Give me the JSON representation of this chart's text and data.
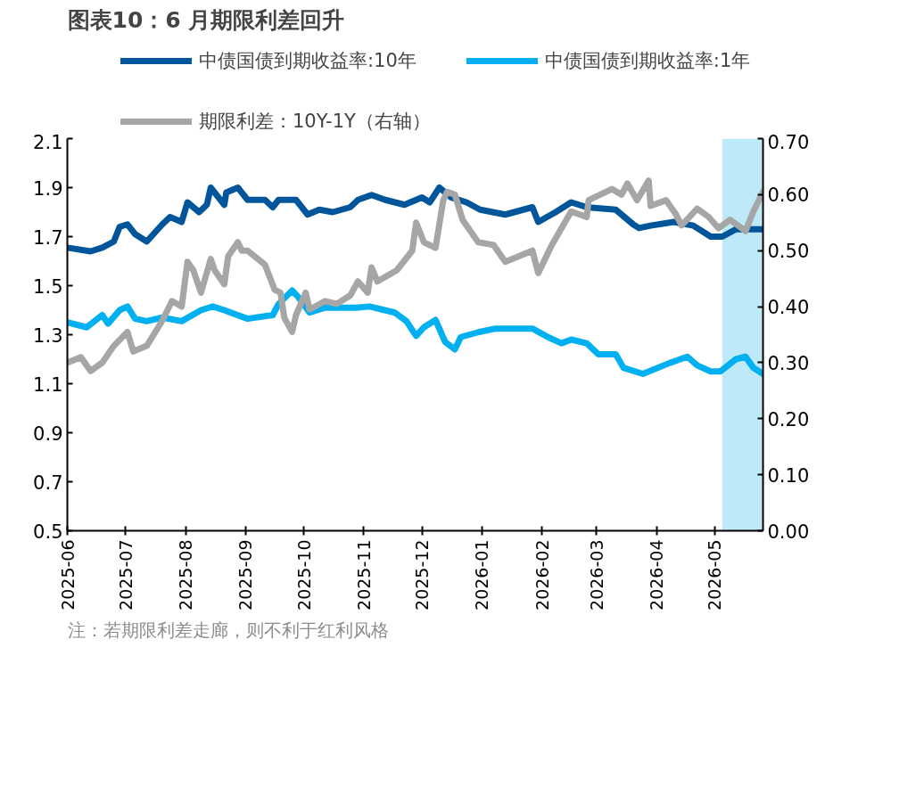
{
  "chart_data": {
    "type": "line",
    "title": "图表10：6 月期限利差回升",
    "annotations": [
      "注：若期限利差走廊，则不利于红利风格"
    ],
    "xlim": [
      "2025-06-01",
      "2026-05-26"
    ],
    "xticks": [
      {
        "value": "2025-06-01",
        "label": "2025-06"
      },
      {
        "value": "2025-07-01",
        "label": "2025-07"
      },
      {
        "value": "2025-08-01",
        "label": "2025-08"
      },
      {
        "value": "2025-09-01",
        "label": "2025-09"
      },
      {
        "value": "2025-10-01",
        "label": "2025-10"
      },
      {
        "value": "2025-11-01",
        "label": "2025-11"
      },
      {
        "value": "2025-12-01",
        "label": "2025-12"
      },
      {
        "value": "2026-01-01",
        "label": "2026-01"
      },
      {
        "value": "2026-02-01",
        "label": "2026-02"
      },
      {
        "value": "2026-03-01",
        "label": "2026-03"
      },
      {
        "value": "2026-04-01",
        "label": "2026-04"
      },
      {
        "value": "2026-05-01",
        "label": "2026-05"
      }
    ],
    "ylim": [
      0.5,
      2.1
    ],
    "yticks": [
      0.5,
      0.7,
      0.9,
      1.1,
      1.3,
      1.5,
      1.7,
      1.9,
      2.1
    ],
    "y2lim": [
      0,
      0.7
    ],
    "y2ticks": [
      {
        "value": 0,
        "label": "0.00"
      },
      {
        "value": 0.1,
        "label": "0.10"
      },
      {
        "value": 0.2,
        "label": "0.20"
      },
      {
        "value": 0.3,
        "label": "0.30"
      },
      {
        "value": 0.4,
        "label": "0.40"
      },
      {
        "value": 0.5,
        "label": "0.50"
      },
      {
        "value": 0.6,
        "label": "0.60"
      },
      {
        "value": 0.7,
        "label": "0.70"
      }
    ],
    "grid": false,
    "legend": "top",
    "line_style": "solid",
    "marker": "none",
    "bands": [
      {
        "axis": "x",
        "from": "2026-05-05",
        "to": "2026-05-26",
        "color": "#b3e5f7"
      }
    ],
    "series": [
      {
        "name": "中债国债到期收益率:10年",
        "color": "#00559b",
        "x": [
          "2025-06-01",
          "2025-06-13",
          "2025-06-19",
          "2025-06-25",
          "2025-06-28",
          "2025-07-02",
          "2025-07-06",
          "2025-07-12",
          "2025-07-20",
          "2025-07-24",
          "2025-07-30",
          "2025-08-02",
          "2025-08-08",
          "2025-08-12",
          "2025-08-14",
          "2025-08-21",
          "2025-08-22",
          "2025-08-28",
          "2025-09-02",
          "2025-09-11",
          "2025-09-15",
          "2025-09-18",
          "2025-09-27",
          "2025-10-03",
          "2025-10-09",
          "2025-10-16",
          "2025-10-25",
          "2025-10-29",
          "2025-11-05",
          "2025-11-12",
          "2025-11-22",
          "2025-12-01",
          "2025-12-05",
          "2025-12-10",
          "2025-12-16",
          "2025-12-24",
          "2025-12-31",
          "2026-01-13",
          "2026-01-27",
          "2026-01-30",
          "2026-02-08",
          "2026-02-16",
          "2026-02-24",
          "2026-03-11",
          "2026-03-20",
          "2026-03-23",
          "2026-03-29",
          "2026-04-10",
          "2026-04-20",
          "2026-04-29",
          "2026-05-05",
          "2026-05-12",
          "2026-05-26"
        ],
        "values": [
          1.655,
          1.64,
          1.655,
          1.68,
          1.74,
          1.75,
          1.71,
          1.68,
          1.75,
          1.78,
          1.76,
          1.84,
          1.8,
          1.83,
          1.9,
          1.83,
          1.88,
          1.9,
          1.85,
          1.85,
          1.82,
          1.85,
          1.85,
          1.79,
          1.81,
          1.8,
          1.82,
          1.85,
          1.87,
          1.85,
          1.83,
          1.86,
          1.84,
          1.9,
          1.86,
          1.84,
          1.81,
          1.79,
          1.82,
          1.76,
          1.8,
          1.84,
          1.82,
          1.81,
          1.75,
          1.735,
          1.745,
          1.76,
          1.745,
          1.7,
          1.7,
          1.73,
          1.73
        ]
      },
      {
        "name": "中债国债到期收益率:1年",
        "color": "#00b0f0",
        "x": [
          "2025-06-01",
          "2025-06-11",
          "2025-06-19",
          "2025-06-22",
          "2025-06-28",
          "2025-07-02",
          "2025-07-06",
          "2025-07-12",
          "2025-07-20",
          "2025-07-30",
          "2025-08-09",
          "2025-08-15",
          "2025-08-21",
          "2025-09-02",
          "2025-09-15",
          "2025-09-18",
          "2025-09-25",
          "2025-09-28",
          "2025-10-04",
          "2025-10-12",
          "2025-10-28",
          "2025-11-04",
          "2025-11-17",
          "2025-11-23",
          "2025-11-28",
          "2025-12-02",
          "2025-12-08",
          "2025-12-13",
          "2025-12-18",
          "2025-12-21",
          "2025-12-30",
          "2026-01-08",
          "2026-01-27",
          "2026-02-04",
          "2026-02-11",
          "2026-02-16",
          "2026-02-24",
          "2026-03-02",
          "2026-03-11",
          "2026-03-15",
          "2026-03-25",
          "2026-04-08",
          "2026-04-17",
          "2026-04-22",
          "2026-04-29",
          "2026-05-04",
          "2026-05-12",
          "2026-05-17",
          "2026-05-21",
          "2026-05-26"
        ],
        "values": [
          1.35,
          1.33,
          1.38,
          1.345,
          1.4,
          1.415,
          1.365,
          1.355,
          1.37,
          1.355,
          1.4,
          1.415,
          1.4,
          1.365,
          1.38,
          1.425,
          1.48,
          1.455,
          1.39,
          1.41,
          1.41,
          1.415,
          1.39,
          1.355,
          1.295,
          1.33,
          1.36,
          1.27,
          1.24,
          1.29,
          1.31,
          1.325,
          1.325,
          1.29,
          1.265,
          1.28,
          1.265,
          1.22,
          1.22,
          1.165,
          1.14,
          1.185,
          1.21,
          1.175,
          1.15,
          1.15,
          1.2,
          1.21,
          1.165,
          1.14
        ]
      },
      {
        "name": "期限利差：10Y-1Y（右轴）",
        "color": "#a6a6a6",
        "axis": "y2",
        "x": [
          "2025-06-01",
          "2025-06-08",
          "2025-06-13",
          "2025-06-19",
          "2025-06-25",
          "2025-07-02",
          "2025-07-05",
          "2025-07-12",
          "2025-07-20",
          "2025-07-25",
          "2025-07-30",
          "2025-08-02",
          "2025-08-05",
          "2025-08-09",
          "2025-08-14",
          "2025-08-16",
          "2025-08-21",
          "2025-08-23",
          "2025-08-28",
          "2025-08-30",
          "2025-09-02",
          "2025-09-11",
          "2025-09-16",
          "2025-09-19",
          "2025-09-21",
          "2025-09-25",
          "2025-09-27",
          "2025-10-02",
          "2025-10-04",
          "2025-10-12",
          "2025-10-18",
          "2025-10-25",
          "2025-10-29",
          "2025-11-03",
          "2025-11-05",
          "2025-11-08",
          "2025-11-18",
          "2025-11-26",
          "2025-11-28",
          "2025-12-02",
          "2025-12-08",
          "2025-12-12",
          "2025-12-14",
          "2025-12-18",
          "2025-12-22",
          "2025-12-30",
          "2026-01-07",
          "2026-01-13",
          "2026-01-27",
          "2026-01-30",
          "2026-02-06",
          "2026-02-16",
          "2026-02-24",
          "2026-02-25",
          "2026-03-09",
          "2026-03-14",
          "2026-03-17",
          "2026-03-22",
          "2026-03-28",
          "2026-03-29",
          "2026-04-06",
          "2026-04-11",
          "2026-04-14",
          "2026-04-22",
          "2026-04-28",
          "2026-05-03",
          "2026-05-09",
          "2026-05-17",
          "2026-05-21",
          "2026-05-26"
        ],
        "values": [
          0.3,
          0.31,
          0.285,
          0.3,
          0.33,
          0.355,
          0.32,
          0.33,
          0.375,
          0.41,
          0.4,
          0.48,
          0.465,
          0.425,
          0.485,
          0.465,
          0.44,
          0.49,
          0.515,
          0.5,
          0.5,
          0.475,
          0.43,
          0.425,
          0.38,
          0.355,
          0.385,
          0.425,
          0.395,
          0.41,
          0.405,
          0.42,
          0.445,
          0.425,
          0.47,
          0.445,
          0.465,
          0.5,
          0.55,
          0.515,
          0.505,
          0.59,
          0.605,
          0.6,
          0.555,
          0.515,
          0.51,
          0.48,
          0.5,
          0.46,
          0.51,
          0.57,
          0.56,
          0.59,
          0.61,
          0.6,
          0.62,
          0.59,
          0.625,
          0.58,
          0.59,
          0.565,
          0.545,
          0.575,
          0.56,
          0.54,
          0.555,
          0.535,
          0.57,
          0.605
        ]
      }
    ]
  }
}
